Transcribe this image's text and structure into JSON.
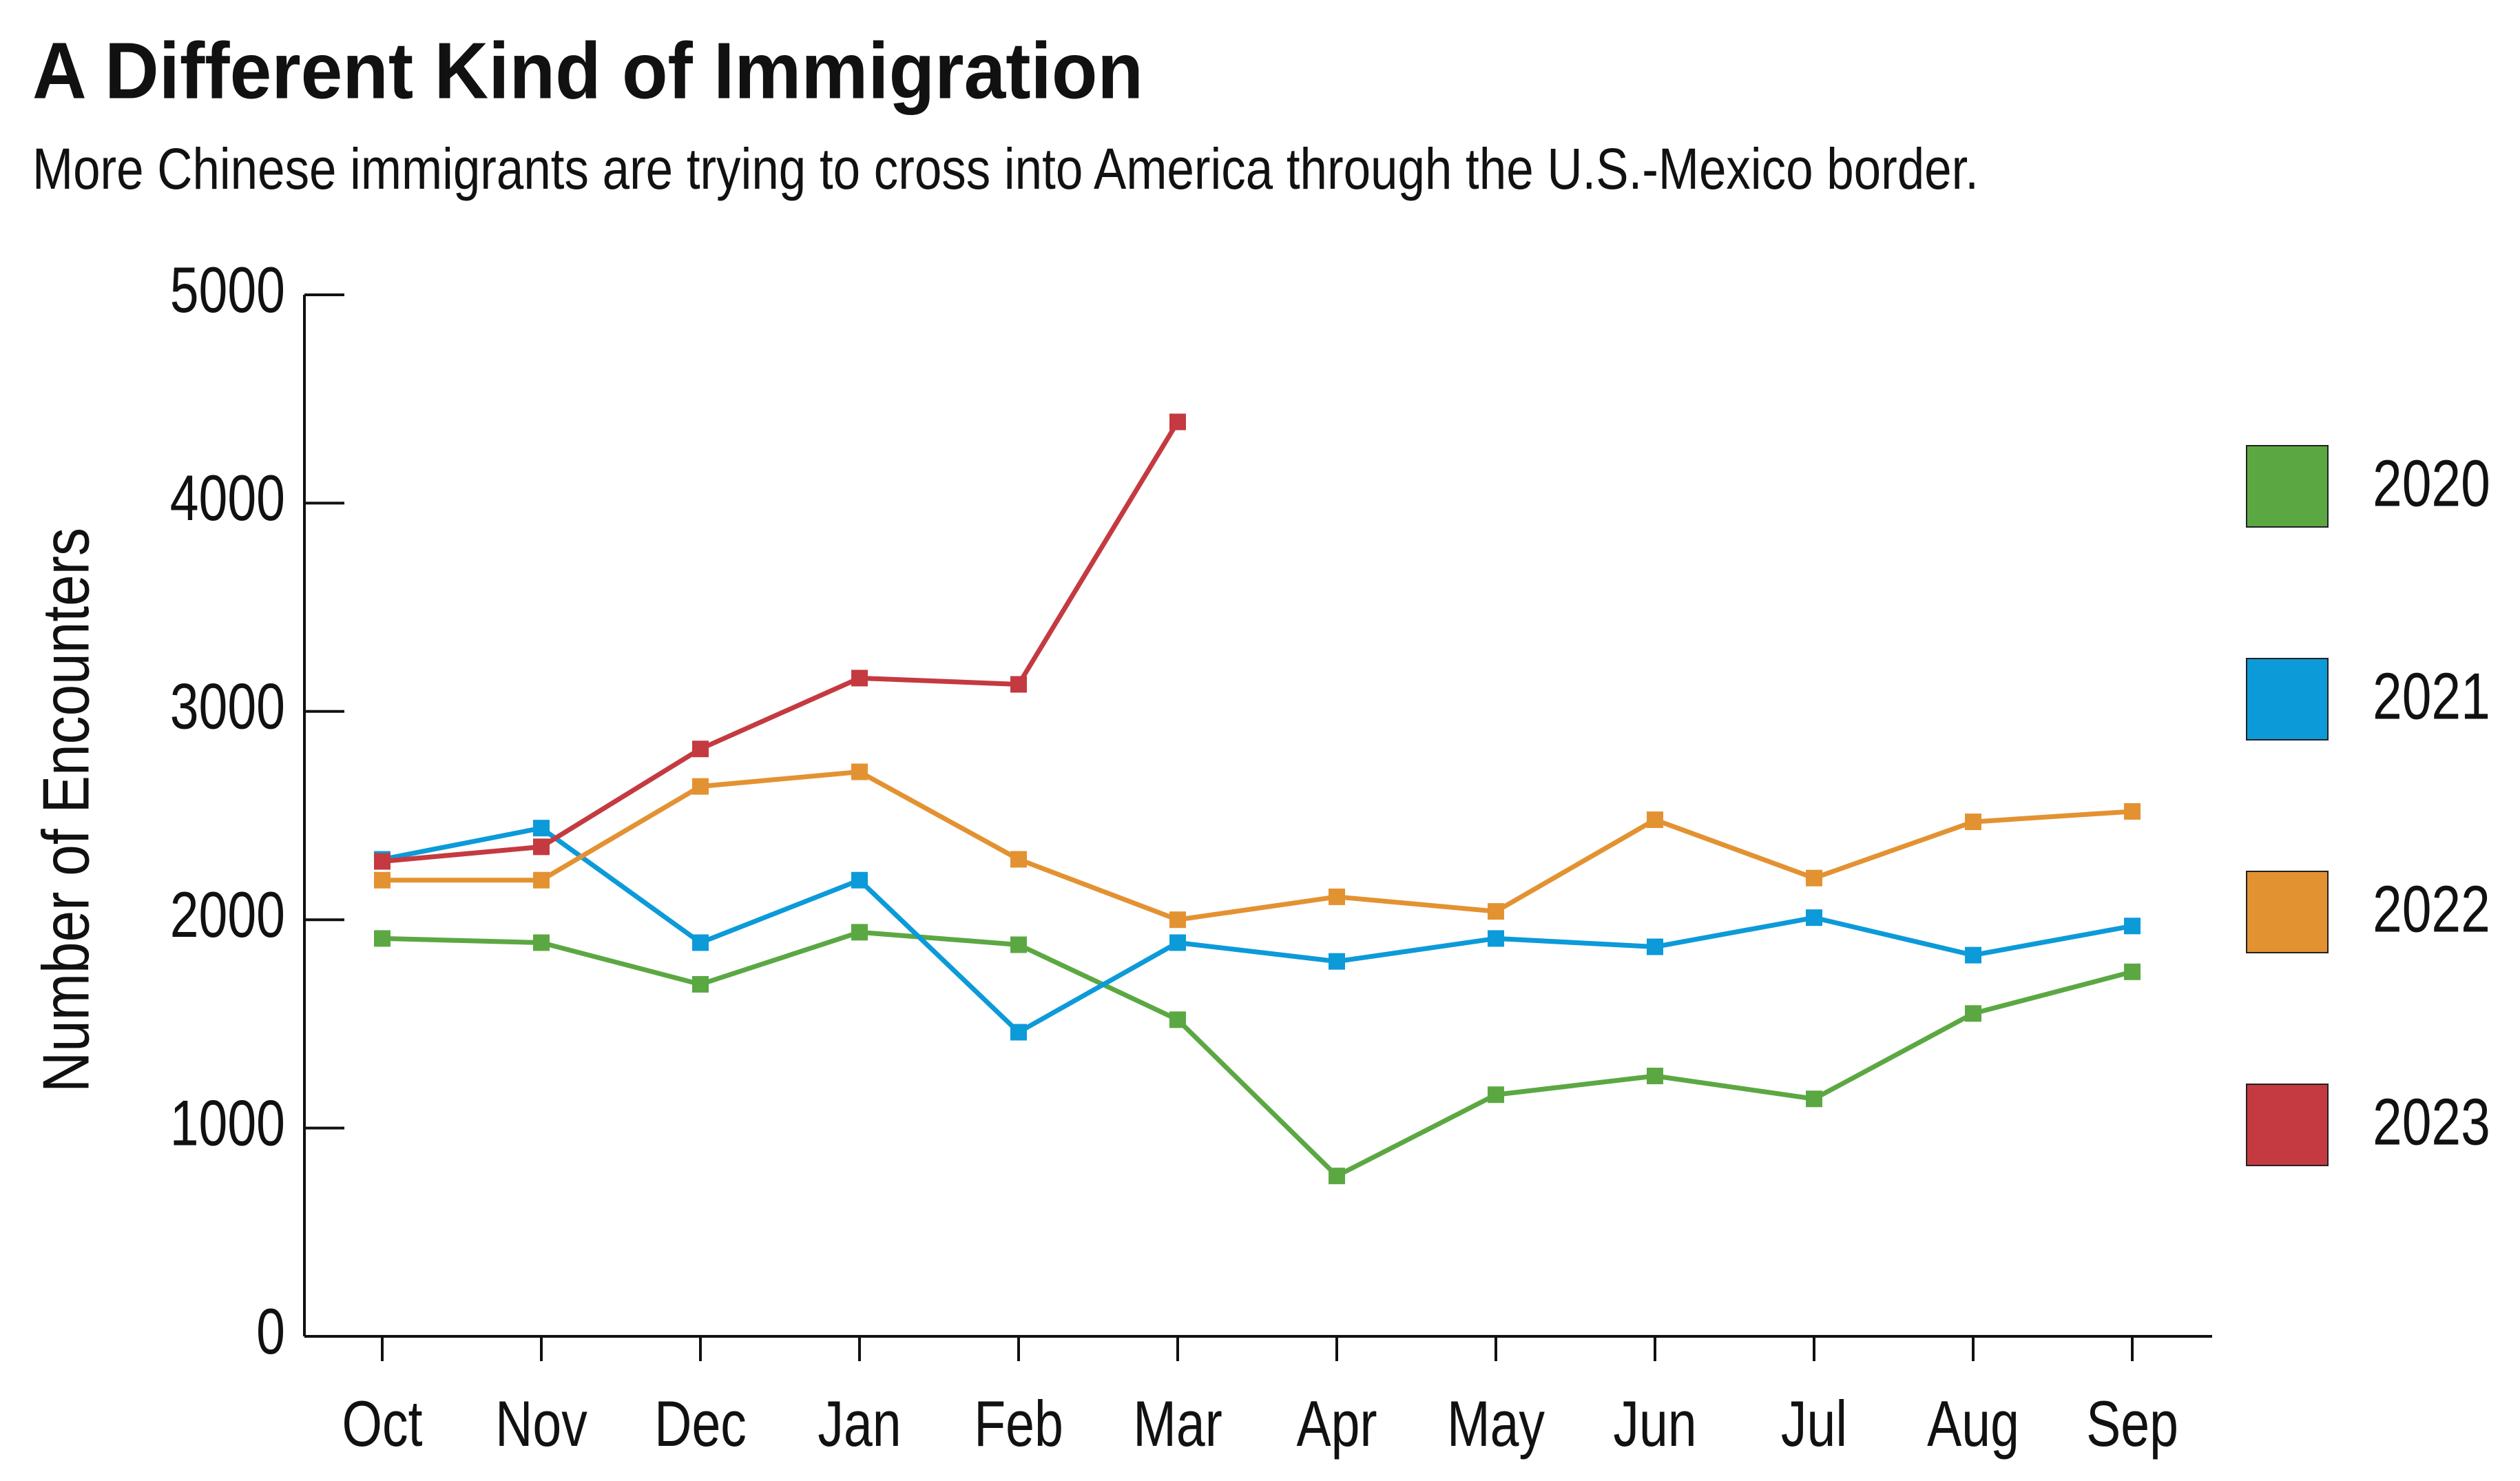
{
  "chart_data": {
    "type": "line",
    "title": "A Different Kind of Immigration",
    "subtitle": "More Chinese immigrants are trying to cross into America through the U.S.-Mexico border.",
    "y_label": "Number of Encounters",
    "categories": [
      "Oct",
      "Nov",
      "Dec",
      "Jan",
      "Feb",
      "Mar",
      "Apr",
      "May",
      "Jun",
      "Jul",
      "Aug",
      "Sep"
    ],
    "series": [
      {
        "name": "2020",
        "color": "#5ba843",
        "values": [
          1910,
          1890,
          1690,
          1940,
          1880,
          1520,
          770,
          1160,
          1250,
          1140,
          1550,
          1750
        ]
      },
      {
        "name": "2021",
        "color": "#0c9ad9",
        "values": [
          2290,
          2440,
          1890,
          2190,
          1460,
          1890,
          1800,
          1910,
          1870,
          2010,
          1830,
          1970
        ]
      },
      {
        "name": "2022",
        "color": "#e39232",
        "values": [
          2190,
          2190,
          2640,
          2710,
          2290,
          2000,
          2110,
          2040,
          2480,
          2200,
          2470,
          2520
        ]
      },
      {
        "name": "2023",
        "color": "#c43a40",
        "values": [
          2280,
          2350,
          2820,
          3160,
          3130,
          4390,
          null,
          null,
          null,
          null,
          null,
          null
        ]
      }
    ],
    "ylim": [
      0,
      5000
    ],
    "yticks": [
      0,
      1000,
      2000,
      3000,
      4000,
      5000
    ],
    "legend": "right"
  }
}
